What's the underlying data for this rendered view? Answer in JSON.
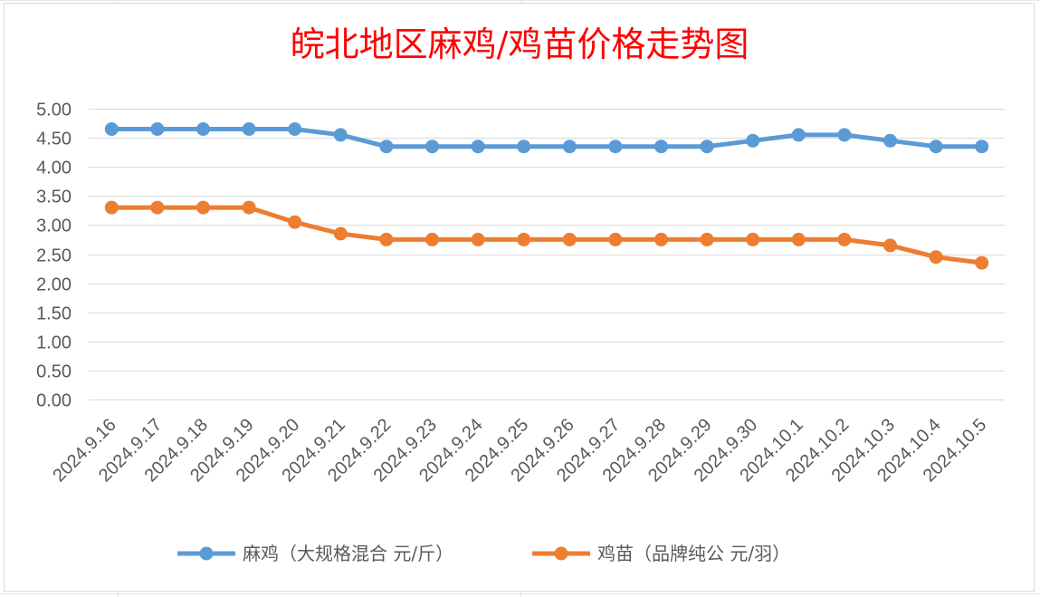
{
  "chart_data": {
    "type": "line",
    "title": "皖北地区麻鸡/鸡苗价格走势图",
    "categories": [
      "2024.9.16",
      "2024.9.17",
      "2024.9.18",
      "2024.9.19",
      "2024.9.20",
      "2024.9.21",
      "2024.9.22",
      "2024.9.23",
      "2024.9.24",
      "2024.9.25",
      "2024.9.26",
      "2024.9.27",
      "2024.9.28",
      "2024.9.29",
      "2024.9.30",
      "2024.10.1",
      "2024.10.2",
      "2024.10.3",
      "2024.10.4",
      "2024.10.5"
    ],
    "yticks": [
      "0.00",
      "0.50",
      "1.00",
      "1.50",
      "2.00",
      "2.50",
      "3.00",
      "3.50",
      "4.00",
      "4.50",
      "5.00"
    ],
    "ylim": [
      0,
      5
    ],
    "grid": true,
    "legend_position": "bottom",
    "series": [
      {
        "name": "麻鸡（大规格混合 元/斤）",
        "color": "#5b9bd5",
        "values": [
          4.65,
          4.65,
          4.65,
          4.65,
          4.65,
          4.55,
          4.35,
          4.35,
          4.35,
          4.35,
          4.35,
          4.35,
          4.35,
          4.35,
          4.45,
          4.55,
          4.55,
          4.45,
          4.35,
          4.35
        ]
      },
      {
        "name": "鸡苗（品牌纯公 元/羽）",
        "color": "#ed7d31",
        "values": [
          3.3,
          3.3,
          3.3,
          3.3,
          3.05,
          2.85,
          2.75,
          2.75,
          2.75,
          2.75,
          2.75,
          2.75,
          2.75,
          2.75,
          2.75,
          2.75,
          2.75,
          2.65,
          2.45,
          2.35
        ]
      }
    ]
  }
}
